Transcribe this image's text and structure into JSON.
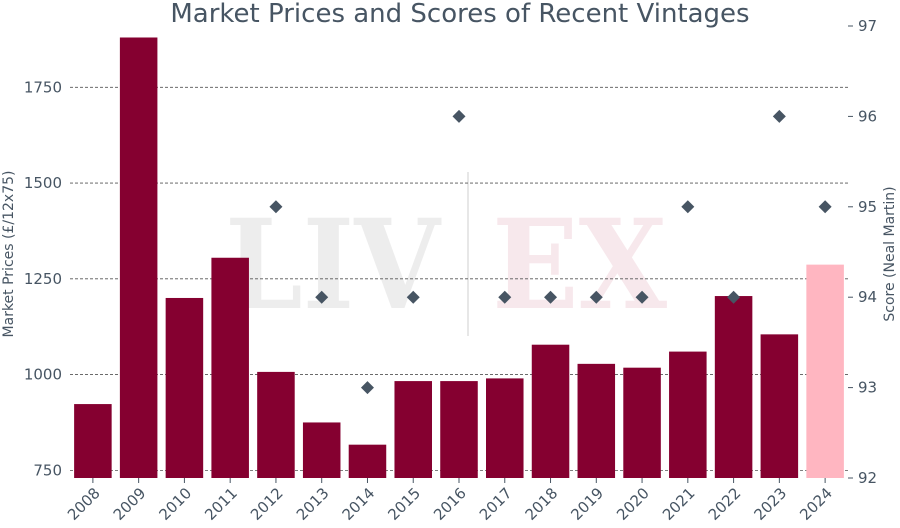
{
  "chart_data": {
    "type": "bar",
    "title": "Market Prices and Scores of Recent Vintages",
    "ylabel": "Market Prices (£/12x75)",
    "y2label": "Score (Neal Martin)",
    "categories": [
      "2008",
      "2009",
      "2010",
      "2011",
      "2012",
      "2013",
      "2014",
      "2015",
      "2016",
      "2017",
      "2018",
      "2019",
      "2020",
      "2021",
      "2022",
      "2023",
      "2024"
    ],
    "series": [
      {
        "kind": "bar",
        "values": [
          923,
          1880,
          1200,
          1305,
          1007,
          875,
          817,
          983,
          983,
          990,
          1078,
          1028,
          1018,
          1060,
          1205,
          1105,
          1287
        ],
        "colors": [
          "#850030",
          "#850030",
          "#850030",
          "#850030",
          "#850030",
          "#850030",
          "#850030",
          "#850030",
          "#850030",
          "#850030",
          "#850030",
          "#850030",
          "#850030",
          "#850030",
          "#850030",
          "#850030",
          "#ffb6c1"
        ]
      },
      {
        "kind": "scatter",
        "axis": "right",
        "marker": "diamond",
        "color": "#475563",
        "points": [
          {
            "x": "2012",
            "y": 95
          },
          {
            "x": "2013",
            "y": 94
          },
          {
            "x": "2014",
            "y": 93
          },
          {
            "x": "2015",
            "y": 94
          },
          {
            "x": "2016",
            "y": 96
          },
          {
            "x": "2017",
            "y": 94
          },
          {
            "x": "2018",
            "y": 94
          },
          {
            "x": "2019",
            "y": 94
          },
          {
            "x": "2020",
            "y": 94
          },
          {
            "x": "2021",
            "y": 95
          },
          {
            "x": "2022",
            "y": 94
          },
          {
            "x": "2023",
            "y": 96
          },
          {
            "x": "2024",
            "y": 95
          }
        ]
      }
    ],
    "ylim": [
      730,
      1910
    ],
    "y2lim": [
      92,
      97
    ],
    "yticks": [
      750,
      1000,
      1250,
      1500,
      1750
    ],
    "y2ticks": [
      92,
      93,
      94,
      95,
      96,
      97
    ],
    "grid": "horizontal dashed at left-axis ticks",
    "watermark": "LIV|EX"
  }
}
